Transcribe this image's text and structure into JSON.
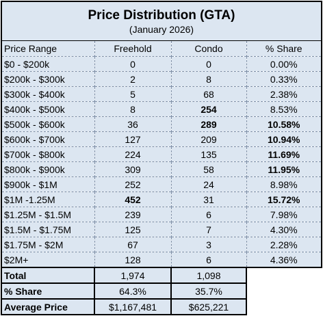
{
  "title": "Price Distribution (GTA)",
  "subtitle": "(January 2026)",
  "columns": [
    "Price Range",
    "Freehold",
    "Condo",
    "% Share"
  ],
  "rows": [
    {
      "range": "$0 - $200k",
      "freehold": "0",
      "condo": "0",
      "share": "0.00%",
      "bold": []
    },
    {
      "range": "$200k - $300k",
      "freehold": "2",
      "condo": "8",
      "share": "0.33%",
      "bold": []
    },
    {
      "range": "$300k - $400k",
      "freehold": "5",
      "condo": "68",
      "share": "2.38%",
      "bold": []
    },
    {
      "range": "$400k - $500k",
      "freehold": "8",
      "condo": "254",
      "share": "8.53%",
      "bold": [
        "condo"
      ]
    },
    {
      "range": "$500k - $600k",
      "freehold": "36",
      "condo": "289",
      "share": "10.58%",
      "bold": [
        "condo",
        "share"
      ]
    },
    {
      "range": "$600k - $700k",
      "freehold": "127",
      "condo": "209",
      "share": "10.94%",
      "bold": [
        "share"
      ]
    },
    {
      "range": "$700k - $800k",
      "freehold": "224",
      "condo": "135",
      "share": "11.69%",
      "bold": [
        "share"
      ]
    },
    {
      "range": "$800k - $900k",
      "freehold": "309",
      "condo": "58",
      "share": "11.95%",
      "bold": [
        "share"
      ]
    },
    {
      "range": "$900k - $1M",
      "freehold": "252",
      "condo": "24",
      "share": "8.98%",
      "bold": []
    },
    {
      "range": "$1M -1.25M",
      "freehold": "452",
      "condo": "31",
      "share": "15.72%",
      "bold": [
        "freehold",
        "share"
      ]
    },
    {
      "range": "$1.25M - $1.5M",
      "freehold": "239",
      "condo": "6",
      "share": "7.98%",
      "bold": []
    },
    {
      "range": "$1.5M - $1.75M",
      "freehold": "125",
      "condo": "7",
      "share": "4.30%",
      "bold": []
    },
    {
      "range": "$1.75M - $2M",
      "freehold": "67",
      "condo": "3",
      "share": "2.28%",
      "bold": []
    },
    {
      "range": "$2M+",
      "freehold": "128",
      "condo": "6",
      "share": "4.36%",
      "bold": []
    }
  ],
  "summary": [
    {
      "label": "Total",
      "freehold": "1,974",
      "condo": "1,098"
    },
    {
      "label": "% Share",
      "freehold": "64.3%",
      "condo": "35.7%"
    },
    {
      "label": "Average Price",
      "freehold": "$1,167,481",
      "condo": "$625,221"
    }
  ],
  "colors": {
    "fill": "#dce6f1",
    "border": "#000000",
    "gridline": "#7f8fa6"
  }
}
